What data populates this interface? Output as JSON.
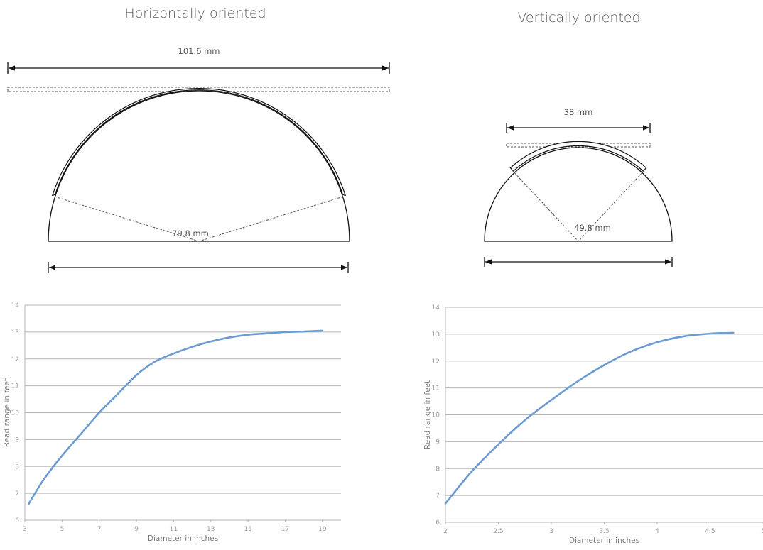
{
  "panels": {
    "horizontal": {
      "title": "Horizontally oriented",
      "width_label": "101.6 mm",
      "diameter_label": "79.8 mm"
    },
    "vertical": {
      "title": "Vertically oriented",
      "width_label": "38 mm",
      "diameter_label": "49.8 mm"
    }
  },
  "colors": {
    "curve": "#6b9bd2",
    "grid": "#b5b5b5",
    "outline": "#111111"
  },
  "chart_data": [
    {
      "type": "line",
      "xlabel": "Diameter in inches",
      "ylabel": "Read range in feet",
      "xlim": [
        3,
        20
      ],
      "ylim": [
        6,
        14
      ],
      "xticks": [
        "3",
        "5",
        "7",
        "9",
        "11",
        "13",
        "15",
        "17",
        "19"
      ],
      "yticks": [
        "6",
        "7",
        "8",
        "9",
        "10",
        "11",
        "12",
        "13",
        "14"
      ],
      "grid": "horizontal",
      "x": [
        3.2,
        4,
        5,
        6,
        7,
        8,
        9,
        10,
        11,
        12,
        13,
        14,
        15,
        16,
        17,
        18,
        19
      ],
      "y": [
        6.6,
        7.5,
        8.4,
        9.2,
        10.0,
        10.7,
        11.4,
        11.9,
        12.2,
        12.45,
        12.65,
        12.8,
        12.9,
        12.95,
        13.0,
        13.02,
        13.05
      ]
    },
    {
      "type": "line",
      "xlabel": "Diameter in inches",
      "ylabel": "Read range in feet",
      "xlim": [
        2,
        5
      ],
      "ylim": [
        6,
        14
      ],
      "xticks": [
        "2",
        "2.5",
        "3",
        "3.5",
        "4",
        "4.5",
        "5"
      ],
      "yticks": [
        "6",
        "7",
        "8",
        "9",
        "10",
        "11",
        "12",
        "13",
        "14"
      ],
      "grid": "horizontal",
      "x": [
        2,
        2.25,
        2.5,
        2.75,
        3,
        3.25,
        3.5,
        3.75,
        4,
        4.25,
        4.5,
        4.72
      ],
      "y": [
        6.7,
        7.9,
        8.9,
        9.8,
        10.55,
        11.25,
        11.85,
        12.35,
        12.7,
        12.92,
        13.02,
        13.05
      ]
    }
  ]
}
